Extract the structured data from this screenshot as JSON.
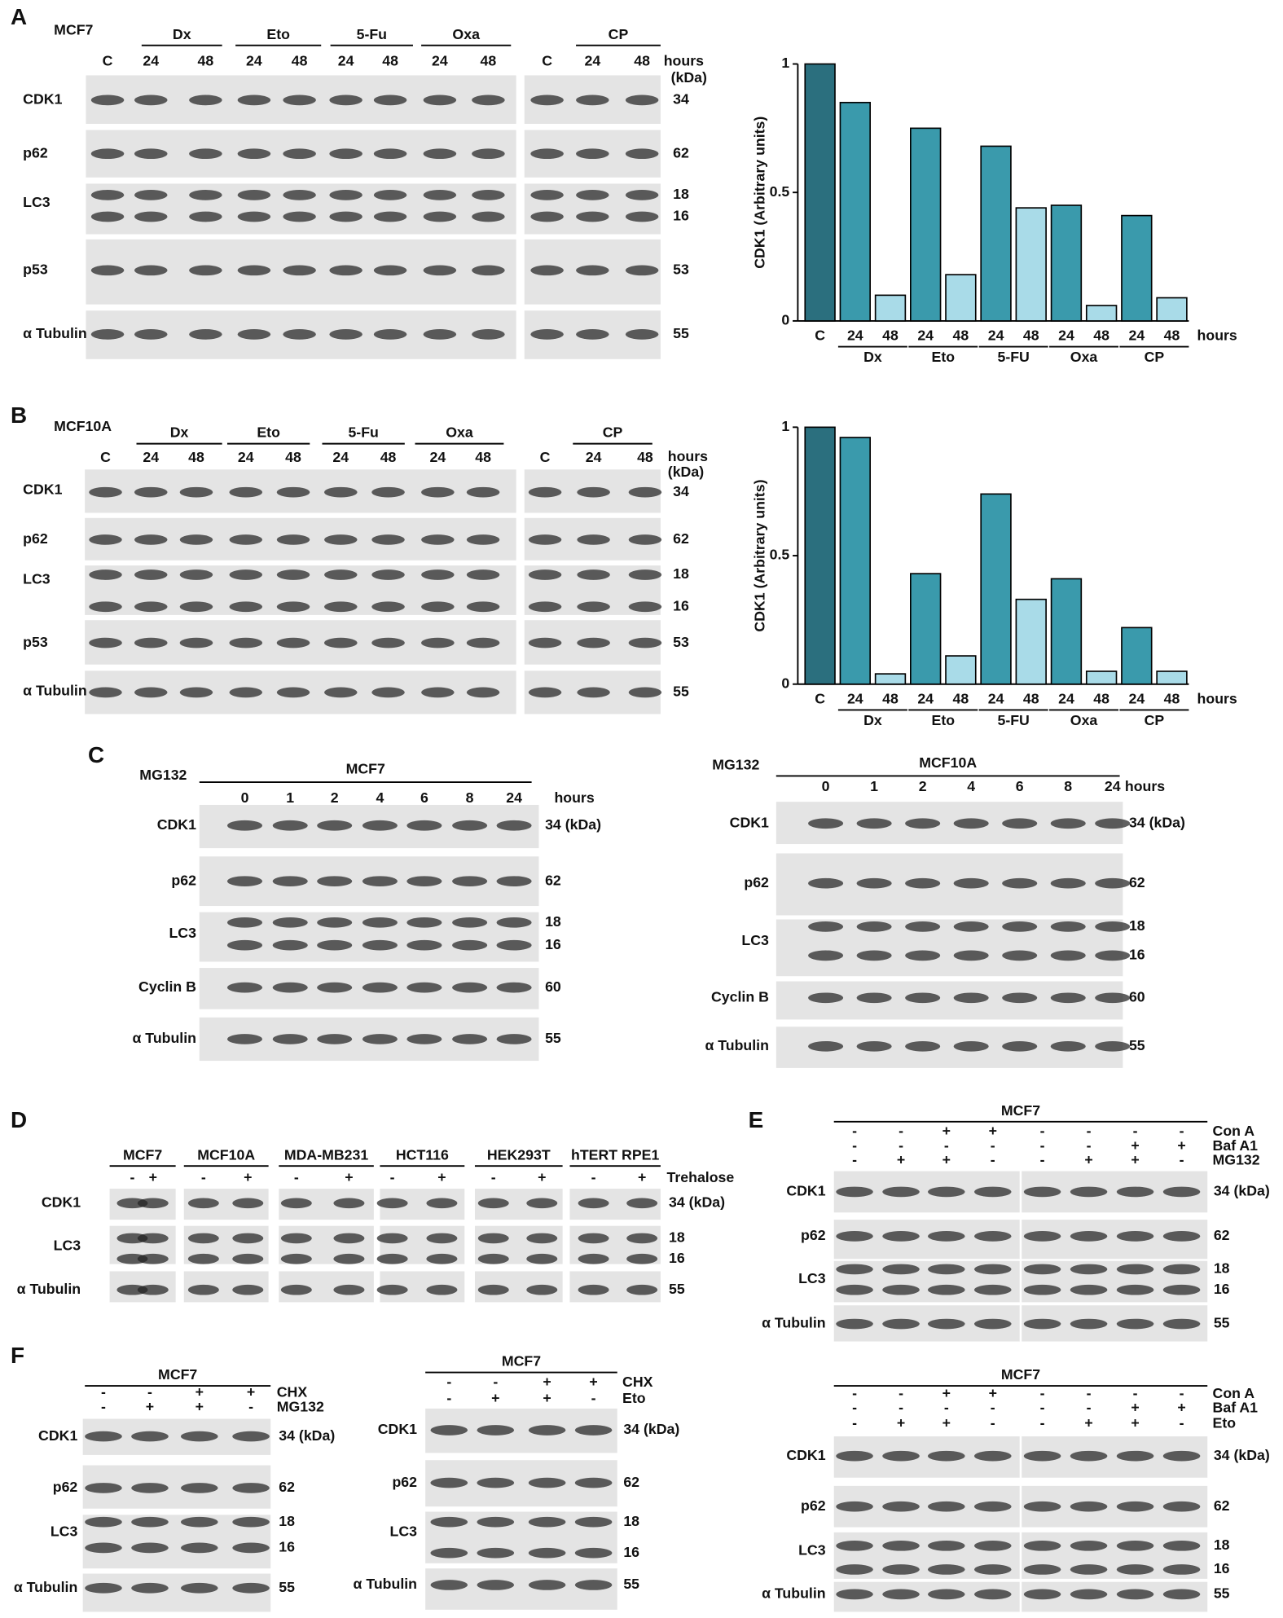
{
  "chart_data": [
    {
      "type": "bar",
      "y_label": "CDK1 (Arbitrary units)",
      "categories": [
        "C",
        "24",
        "48",
        "24",
        "48",
        "24",
        "48",
        "24",
        "48",
        "24",
        "48"
      ],
      "group_labels": [
        "Dx",
        "Eto",
        "5-FU",
        "Oxa",
        "CP"
      ],
      "x_unit": "hours",
      "values": [
        1.0,
        0.85,
        0.1,
        0.75,
        0.18,
        0.68,
        0.44,
        0.45,
        0.06,
        0.41,
        0.09
      ],
      "colors": [
        "#2b6f7e",
        "#3a9aac",
        "#a9dbe8",
        "#3a9aac",
        "#a9dbe8",
        "#3a9aac",
        "#a9dbe8",
        "#3a9aac",
        "#a9dbe8",
        "#3a9aac",
        "#a9dbe8"
      ],
      "ylim": [
        0,
        1
      ],
      "yticks": [
        0,
        0.5,
        1
      ]
    },
    {
      "type": "bar",
      "y_label": "CDK1 (Arbitrary units)",
      "categories": [
        "C",
        "24",
        "48",
        "24",
        "48",
        "24",
        "48",
        "24",
        "48",
        "24",
        "48"
      ],
      "group_labels": [
        "Dx",
        "Eto",
        "5-FU",
        "Oxa",
        "CP"
      ],
      "x_unit": "hours",
      "values": [
        1.0,
        0.96,
        0.04,
        0.43,
        0.11,
        0.74,
        0.33,
        0.41,
        0.05,
        0.22,
        0.05
      ],
      "colors": [
        "#2b6f7e",
        "#3a9aac",
        "#a9dbe8",
        "#3a9aac",
        "#a9dbe8",
        "#3a9aac",
        "#a9dbe8",
        "#3a9aac",
        "#a9dbe8",
        "#3a9aac",
        "#a9dbe8"
      ],
      "ylim": [
        0,
        1
      ],
      "yticks": [
        0,
        0.5,
        1
      ]
    }
  ],
  "panels": {
    "A": {
      "letter": "A",
      "cell_line": "MCF7",
      "groups": [
        "Dx",
        "Eto",
        "5-Fu",
        "Oxa",
        "CP"
      ],
      "lanes": [
        "C",
        "24",
        "48",
        "24",
        "48",
        "24",
        "48",
        "24",
        "48",
        "C",
        "24",
        "48"
      ],
      "time_unit": "hours",
      "kda_unit": "(kDa)",
      "rows": [
        {
          "protein": "CDK1",
          "kda": [
            "34"
          ]
        },
        {
          "protein": "p62",
          "kda": [
            "62"
          ]
        },
        {
          "protein": "LC3",
          "kda": [
            "18",
            "16"
          ]
        },
        {
          "protein": "p53",
          "kda": [
            "53"
          ]
        },
        {
          "protein": "α Tubulin",
          "kda": [
            "55"
          ]
        }
      ]
    },
    "B": {
      "letter": "B",
      "cell_line": "MCF10A",
      "groups": [
        "Dx",
        "Eto",
        "5-Fu",
        "Oxa",
        "CP"
      ],
      "lanes": [
        "C",
        "24",
        "48",
        "24",
        "48",
        "24",
        "48",
        "24",
        "48",
        "C",
        "24",
        "48"
      ],
      "time_unit": "hours",
      "kda_unit": "(kDa)",
      "rows": [
        {
          "protein": "CDK1",
          "kda": [
            "34"
          ]
        },
        {
          "protein": "p62",
          "kda": [
            "62"
          ]
        },
        {
          "protein": "LC3",
          "kda": [
            "18",
            "16"
          ]
        },
        {
          "protein": "p53",
          "kda": [
            "53"
          ]
        },
        {
          "protein": "α Tubulin",
          "kda": [
            "55"
          ]
        }
      ]
    },
    "C": {
      "letter": "C",
      "blots": [
        {
          "treatment": "MG132",
          "cell_line": "MCF7",
          "lanes": [
            "0",
            "1",
            "2",
            "4",
            "6",
            "8",
            "24"
          ],
          "time_unit": "hours",
          "rows": [
            {
              "protein": "CDK1",
              "kda": [
                "34 (kDa)"
              ]
            },
            {
              "protein": "p62",
              "kda": [
                "62"
              ]
            },
            {
              "protein": "LC3",
              "kda": [
                "18",
                "16"
              ]
            },
            {
              "protein": "Cyclin B",
              "kda": [
                "60"
              ]
            },
            {
              "protein": "α Tubulin",
              "kda": [
                "55"
              ]
            }
          ]
        },
        {
          "treatment": "MG132",
          "cell_line": "MCF10A",
          "lanes": [
            "0",
            "1",
            "2",
            "4",
            "6",
            "8",
            "24"
          ],
          "time_unit": "hours",
          "rows": [
            {
              "protein": "CDK1",
              "kda": [
                "34 (kDa)"
              ]
            },
            {
              "protein": "p62",
              "kda": [
                "62"
              ]
            },
            {
              "protein": "LC3",
              "kda": [
                "18",
                "16"
              ]
            },
            {
              "protein": "Cyclin B",
              "kda": [
                "60"
              ]
            },
            {
              "protein": "α Tubulin",
              "kda": [
                "55"
              ]
            }
          ]
        }
      ]
    },
    "D": {
      "letter": "D",
      "treatment": "Trehalose",
      "groups": [
        {
          "cell_line": "MCF7",
          "signs": [
            "-",
            "+"
          ]
        },
        {
          "cell_line": "MCF10A",
          "signs": [
            "-",
            "+"
          ]
        },
        {
          "cell_line": "MDA-MB231",
          "signs": [
            "-",
            "+"
          ]
        },
        {
          "cell_line": "HCT116",
          "signs": [
            "-",
            "+"
          ]
        },
        {
          "cell_line": "HEK293T",
          "signs": [
            "-",
            "+"
          ]
        },
        {
          "cell_line": "hTERT RPE1",
          "signs": [
            "-",
            "+"
          ]
        }
      ],
      "rows": [
        {
          "protein": "CDK1",
          "kda": [
            "34 (kDa)"
          ]
        },
        {
          "protein": "LC3",
          "kda": [
            "18",
            "16"
          ]
        },
        {
          "protein": "α Tubulin",
          "kda": [
            "55"
          ]
        }
      ]
    },
    "E": {
      "letter": "E",
      "blots": [
        {
          "cell_line": "MCF7",
          "conditions": [
            {
              "name": "Con A",
              "signs": [
                "-",
                "-",
                "+",
                "+",
                "-",
                "-",
                "-",
                "-"
              ]
            },
            {
              "name": "Baf A1",
              "signs": [
                "-",
                "-",
                "-",
                "-",
                "-",
                "-",
                "+",
                "+"
              ]
            },
            {
              "name": "MG132",
              "signs": [
                "-",
                "+",
                "+",
                "-",
                "-",
                "+",
                "+",
                "-"
              ]
            }
          ],
          "rows": [
            {
              "protein": "CDK1",
              "kda": [
                "34 (kDa)"
              ]
            },
            {
              "protein": "p62",
              "kda": [
                "62"
              ]
            },
            {
              "protein": "LC3",
              "kda": [
                "18",
                "16"
              ]
            },
            {
              "protein": "α Tubulin",
              "kda": [
                "55"
              ]
            }
          ]
        },
        {
          "cell_line": "MCF7",
          "conditions": [
            {
              "name": "Con A",
              "signs": [
                "-",
                "-",
                "+",
                "+",
                "-",
                "-",
                "-",
                "-"
              ]
            },
            {
              "name": "Baf A1",
              "signs": [
                "-",
                "-",
                "-",
                "-",
                "-",
                "-",
                "+",
                "+"
              ]
            },
            {
              "name": "Eto",
              "signs": [
                "-",
                "+",
                "+",
                "-",
                "-",
                "+",
                "+",
                "-"
              ]
            }
          ],
          "rows": [
            {
              "protein": "CDK1",
              "kda": [
                "34 (kDa)"
              ]
            },
            {
              "protein": "p62",
              "kda": [
                "62"
              ]
            },
            {
              "protein": "LC3",
              "kda": [
                "18",
                "16"
              ]
            },
            {
              "protein": "α Tubulin",
              "kda": [
                "55"
              ]
            }
          ]
        }
      ]
    },
    "F": {
      "letter": "F",
      "blots": [
        {
          "cell_line": "MCF7",
          "conditions": [
            {
              "name": "CHX",
              "signs": [
                "-",
                "-",
                "+",
                "+"
              ]
            },
            {
              "name": "MG132",
              "signs": [
                "-",
                "+",
                "+",
                "-"
              ]
            }
          ],
          "rows": [
            {
              "protein": "CDK1",
              "kda": [
                "34 (kDa)"
              ]
            },
            {
              "protein": "p62",
              "kda": [
                "62"
              ]
            },
            {
              "protein": "LC3",
              "kda": [
                "18",
                "16"
              ]
            },
            {
              "protein": "α Tubulin",
              "kda": [
                "55"
              ]
            }
          ]
        },
        {
          "cell_line": "MCF7",
          "conditions": [
            {
              "name": "CHX",
              "signs": [
                "-",
                "-",
                "+",
                "+"
              ]
            },
            {
              "name": "Eto",
              "signs": [
                "-",
                "+",
                "+",
                "-"
              ]
            }
          ],
          "rows": [
            {
              "protein": "CDK1",
              "kda": [
                "34 (kDa)"
              ]
            },
            {
              "protein": "p62",
              "kda": [
                "62"
              ]
            },
            {
              "protein": "LC3",
              "kda": [
                "18",
                "16"
              ]
            },
            {
              "protein": "α Tubulin",
              "kda": [
                "55"
              ]
            }
          ]
        }
      ]
    }
  }
}
